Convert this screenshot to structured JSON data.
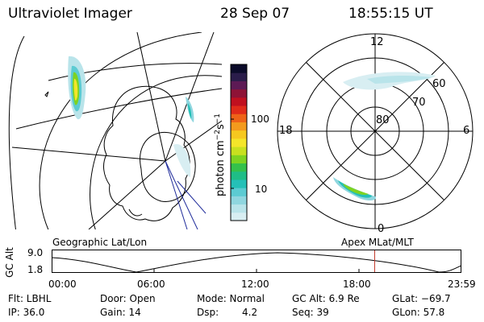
{
  "header": {
    "title": "Ultraviolet Imager",
    "date": "28 Sep 07",
    "time": "18:55:15 UT"
  },
  "colorbar": {
    "unit_label": "photon cm",
    "unit_exp1": "−2",
    "unit_s": "s",
    "unit_exp2": "−1",
    "ticks": [
      "100",
      "10"
    ],
    "colors": [
      "#d8eef2",
      "#b9e4ea",
      "#8fd6df",
      "#5ccbd2",
      "#25c0b7",
      "#1fbd86",
      "#34c14b",
      "#7ed321",
      "#c8e01f",
      "#f4e52a",
      "#f6c81f",
      "#f39a1d",
      "#ee6318",
      "#e02b1a",
      "#c0101f",
      "#8e1336",
      "#5d1a55",
      "#2a1c4a",
      "#0b0b2a"
    ]
  },
  "polar": {
    "mlt_labels": [
      "12",
      "18",
      "6",
      "0"
    ],
    "lat_labels": [
      "60",
      "70",
      "80"
    ]
  },
  "panel_labels": {
    "left": "Geographic Lat/Lon",
    "right": "Apex MLat/MLT"
  },
  "gcalt_plot": {
    "ylabel": "GC Alt",
    "yticks": [
      "9.0",
      "1.8"
    ],
    "xticks": [
      "00:00",
      "06:00",
      "12:00",
      "18:00",
      "23:59"
    ],
    "marker_hour": 18.92,
    "marker_color": "#c0392b"
  },
  "status": {
    "row1": {
      "flt": "Flt: LBHL",
      "door": "Door: Open",
      "mode": "Mode: Normal",
      "gcalt": "GC Alt: 6.9 Re",
      "glat": "GLat: −69.7"
    },
    "row2": {
      "ip": "IP: 36.0",
      "gain": "Gain: 14",
      "dsp_label": "Dsp:",
      "dsp_value": "4.2",
      "seq": "Seq: 39",
      "glon": "GLon:  57.8"
    }
  }
}
